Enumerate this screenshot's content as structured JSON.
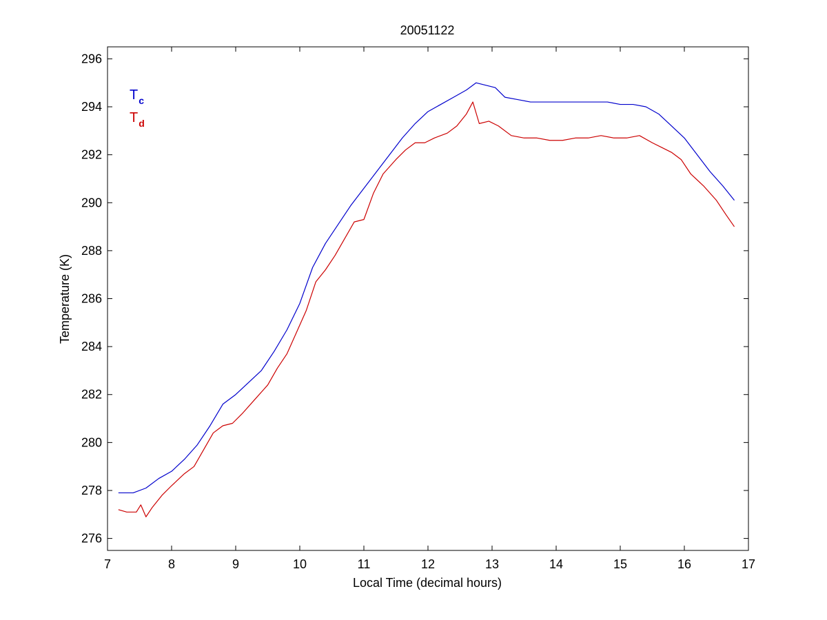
{
  "chart_data": {
    "type": "line",
    "title": "20051122",
    "xlabel": "Local Time (decimal hours)",
    "ylabel": "Temperature (K)",
    "xlim": [
      7,
      17
    ],
    "ylim": [
      275.5,
      296.5
    ],
    "xticks": [
      7,
      8,
      9,
      10,
      11,
      12,
      13,
      14,
      15,
      16,
      17
    ],
    "yticks": [
      276,
      278,
      280,
      282,
      284,
      286,
      288,
      290,
      292,
      294,
      296
    ],
    "grid": false,
    "legend_position": "top-left",
    "series": [
      {
        "name": "T",
        "subscript": "c",
        "color": "#0000cc",
        "points": [
          [
            7.17,
            277.9
          ],
          [
            7.4,
            277.9
          ],
          [
            7.6,
            278.1
          ],
          [
            7.8,
            278.5
          ],
          [
            8.0,
            278.8
          ],
          [
            8.2,
            279.3
          ],
          [
            8.4,
            279.9
          ],
          [
            8.6,
            280.7
          ],
          [
            8.8,
            281.6
          ],
          [
            9.0,
            282.0
          ],
          [
            9.2,
            282.5
          ],
          [
            9.4,
            283.0
          ],
          [
            9.6,
            283.8
          ],
          [
            9.8,
            284.7
          ],
          [
            10.0,
            285.8
          ],
          [
            10.2,
            287.3
          ],
          [
            10.4,
            288.3
          ],
          [
            10.6,
            289.1
          ],
          [
            10.8,
            289.9
          ],
          [
            11.0,
            290.6
          ],
          [
            11.2,
            291.3
          ],
          [
            11.4,
            292.0
          ],
          [
            11.6,
            292.7
          ],
          [
            11.8,
            293.3
          ],
          [
            12.0,
            293.8
          ],
          [
            12.2,
            294.1
          ],
          [
            12.4,
            294.4
          ],
          [
            12.6,
            294.7
          ],
          [
            12.75,
            295.0
          ],
          [
            12.9,
            294.9
          ],
          [
            13.05,
            294.8
          ],
          [
            13.2,
            294.4
          ],
          [
            13.4,
            294.3
          ],
          [
            13.6,
            294.2
          ],
          [
            13.8,
            294.2
          ],
          [
            14.0,
            294.2
          ],
          [
            14.2,
            294.2
          ],
          [
            14.4,
            294.2
          ],
          [
            14.6,
            294.2
          ],
          [
            14.8,
            294.2
          ],
          [
            15.0,
            294.1
          ],
          [
            15.2,
            294.1
          ],
          [
            15.4,
            294.0
          ],
          [
            15.6,
            293.7
          ],
          [
            15.8,
            293.2
          ],
          [
            16.0,
            292.7
          ],
          [
            16.2,
            292.0
          ],
          [
            16.4,
            291.3
          ],
          [
            16.6,
            290.7
          ],
          [
            16.78,
            290.1
          ]
        ]
      },
      {
        "name": "T",
        "subscript": "d",
        "color": "#cc0000",
        "points": [
          [
            7.17,
            277.2
          ],
          [
            7.3,
            277.1
          ],
          [
            7.45,
            277.1
          ],
          [
            7.52,
            277.4
          ],
          [
            7.6,
            276.9
          ],
          [
            7.7,
            277.3
          ],
          [
            7.85,
            277.8
          ],
          [
            8.0,
            278.2
          ],
          [
            8.2,
            278.7
          ],
          [
            8.35,
            279.0
          ],
          [
            8.5,
            279.7
          ],
          [
            8.65,
            280.4
          ],
          [
            8.8,
            280.7
          ],
          [
            8.95,
            280.8
          ],
          [
            9.1,
            281.2
          ],
          [
            9.3,
            281.8
          ],
          [
            9.5,
            282.4
          ],
          [
            9.65,
            283.1
          ],
          [
            9.8,
            283.7
          ],
          [
            9.95,
            284.6
          ],
          [
            10.1,
            285.5
          ],
          [
            10.25,
            286.7
          ],
          [
            10.4,
            287.2
          ],
          [
            10.55,
            287.8
          ],
          [
            10.7,
            288.5
          ],
          [
            10.85,
            289.2
          ],
          [
            11.0,
            289.3
          ],
          [
            11.15,
            290.4
          ],
          [
            11.3,
            291.2
          ],
          [
            11.5,
            291.8
          ],
          [
            11.65,
            292.2
          ],
          [
            11.8,
            292.5
          ],
          [
            11.95,
            292.5
          ],
          [
            12.1,
            292.7
          ],
          [
            12.3,
            292.9
          ],
          [
            12.45,
            293.2
          ],
          [
            12.6,
            293.7
          ],
          [
            12.7,
            294.2
          ],
          [
            12.8,
            293.3
          ],
          [
            12.95,
            293.4
          ],
          [
            13.1,
            293.2
          ],
          [
            13.3,
            292.8
          ],
          [
            13.5,
            292.7
          ],
          [
            13.7,
            292.7
          ],
          [
            13.9,
            292.6
          ],
          [
            14.1,
            292.6
          ],
          [
            14.3,
            292.7
          ],
          [
            14.5,
            292.7
          ],
          [
            14.7,
            292.8
          ],
          [
            14.9,
            292.7
          ],
          [
            15.1,
            292.7
          ],
          [
            15.3,
            292.8
          ],
          [
            15.5,
            292.5
          ],
          [
            15.65,
            292.3
          ],
          [
            15.8,
            292.1
          ],
          [
            15.95,
            291.8
          ],
          [
            16.1,
            291.2
          ],
          [
            16.3,
            290.7
          ],
          [
            16.5,
            290.1
          ],
          [
            16.65,
            289.5
          ],
          [
            16.78,
            289.0
          ]
        ]
      }
    ]
  }
}
